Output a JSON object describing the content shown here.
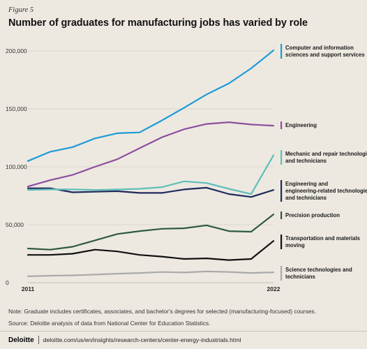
{
  "figure_label": "Figure 5",
  "title": "Number of graduates for manufacturing jobs has varied by role",
  "note": "Note: Graduate includes certificates, associates, and bachelor's degrees for selected (manufacturing-focused) courses.",
  "source": "Source: Deloitte analysis of data from National Center for Education Statistics.",
  "footer": {
    "brand": "Deloitte",
    "url": "deloitte.com/us/en/insights/research-centers/center-energy-industrials.html"
  },
  "chart_data": {
    "type": "line",
    "x": [
      2011,
      2012,
      2013,
      2014,
      2015,
      2016,
      2017,
      2018,
      2019,
      2020,
      2021,
      2022
    ],
    "x_tick_labels": [
      "2011",
      "2022"
    ],
    "ylim": [
      0,
      200000
    ],
    "y_ticks": [
      0,
      50000,
      100000,
      150000,
      200000
    ],
    "y_tick_labels": [
      "0",
      "50,000",
      "100,000",
      "150,000",
      "200,000"
    ],
    "grid": true,
    "legend": "right",
    "series": [
      {
        "name": "Computer and information sciences and support services",
        "color": "#1e9ad6",
        "values": [
          105000,
          113000,
          117000,
          124500,
          129000,
          129700,
          140000,
          151000,
          162500,
          172000,
          185000,
          200500
        ]
      },
      {
        "name": "Engineering",
        "color": "#8e4e9e",
        "values": [
          83000,
          88500,
          93000,
          100000,
          106500,
          116000,
          125500,
          132500,
          137000,
          138500,
          136500,
          135500
        ]
      },
      {
        "name": "Mechanic and repair technologies and technicians",
        "color": "#5fbfb8",
        "values": [
          80000,
          80500,
          80500,
          80000,
          80500,
          81000,
          82500,
          87500,
          86000,
          81000,
          76500,
          110000
        ]
      },
      {
        "name": "Engineering and engineering-related technologies and technicians",
        "color": "#1f2a5c",
        "values": [
          81500,
          81500,
          78000,
          78500,
          79000,
          77500,
          77500,
          80500,
          82000,
          76500,
          74000,
          80000
        ]
      },
      {
        "name": "Precision production",
        "color": "#2e5a3e",
        "values": [
          29500,
          28500,
          31000,
          36500,
          42000,
          44500,
          46500,
          47000,
          49500,
          44500,
          44000,
          59000
        ]
      },
      {
        "name": "Transportation and materials moving",
        "color": "#111111",
        "values": [
          24000,
          24000,
          25000,
          28500,
          27000,
          24000,
          22500,
          20500,
          21000,
          19500,
          20500,
          36000
        ]
      },
      {
        "name": "Science technologies and technicians",
        "color": "#aaaaaa",
        "values": [
          5500,
          6000,
          6300,
          7000,
          7800,
          8400,
          9200,
          8800,
          9700,
          9300,
          8400,
          9000
        ]
      }
    ]
  }
}
